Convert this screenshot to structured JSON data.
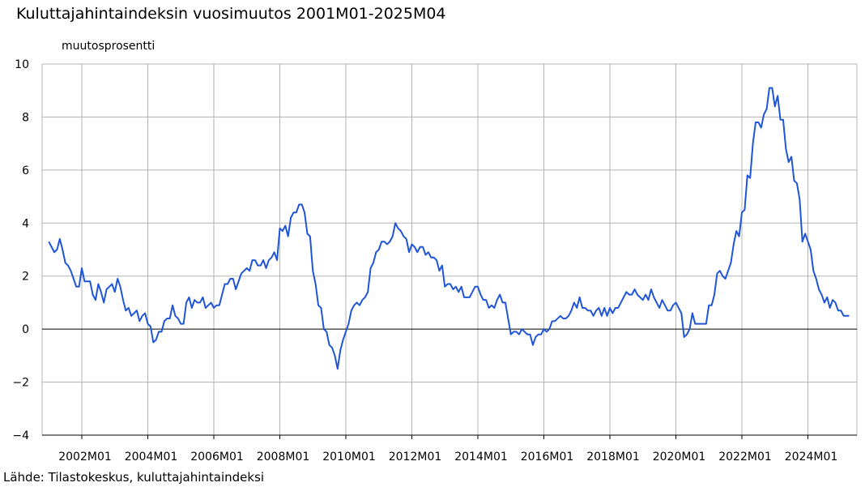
{
  "chart_data": {
    "type": "line",
    "title": "Kuluttajahintaindeksin vuosimuutos 2001M01-2025M04",
    "ylabel": "muutosprosentti",
    "xlabel": "",
    "source": "Lähde: Tilastokeskus, kuluttajahintaindeksi",
    "ylim": [
      -4,
      10
    ],
    "y_ticks": [
      {
        "value": -4,
        "label": "−4"
      },
      {
        "value": -2,
        "label": "−2"
      },
      {
        "value": 0,
        "label": "0"
      },
      {
        "value": 2,
        "label": "2"
      },
      {
        "value": 4,
        "label": "4"
      },
      {
        "value": 6,
        "label": "6"
      },
      {
        "value": 8,
        "label": "8"
      },
      {
        "value": 10,
        "label": "10"
      }
    ],
    "x_range": [
      "2001M01",
      "2025M04"
    ],
    "x_ticks": [
      "2002M01",
      "2004M01",
      "2006M01",
      "2008M01",
      "2010M01",
      "2012M01",
      "2014M01",
      "2016M01",
      "2018M01",
      "2020M01",
      "2022M01",
      "2024M01"
    ],
    "grid": true,
    "zero_line": true,
    "series": [
      {
        "name": "vuosimuutos",
        "color": "#1f55d6",
        "start": "2001M01",
        "frequency": "monthly",
        "values": [
          3.3,
          3.1,
          2.9,
          3.0,
          3.4,
          3.0,
          2.5,
          2.4,
          2.2,
          1.9,
          1.6,
          1.6,
          2.3,
          1.8,
          1.8,
          1.8,
          1.3,
          1.1,
          1.7,
          1.4,
          1.0,
          1.5,
          1.6,
          1.7,
          1.4,
          1.9,
          1.6,
          1.1,
          0.7,
          0.8,
          0.5,
          0.6,
          0.7,
          0.3,
          0.5,
          0.6,
          0.2,
          0.1,
          -0.5,
          -0.4,
          -0.1,
          -0.1,
          0.3,
          0.4,
          0.4,
          0.9,
          0.5,
          0.4,
          0.2,
          0.2,
          1.0,
          1.2,
          0.8,
          1.1,
          1.0,
          1.0,
          1.2,
          0.8,
          0.9,
          1.0,
          0.8,
          0.9,
          0.9,
          1.3,
          1.7,
          1.7,
          1.9,
          1.9,
          1.5,
          1.8,
          2.1,
          2.2,
          2.3,
          2.2,
          2.6,
          2.6,
          2.4,
          2.4,
          2.6,
          2.3,
          2.6,
          2.7,
          2.9,
          2.6,
          3.8,
          3.7,
          3.9,
          3.5,
          4.2,
          4.4,
          4.4,
          4.7,
          4.7,
          4.4,
          3.6,
          3.5,
          2.2,
          1.7,
          0.9,
          0.8,
          0.0,
          -0.1,
          -0.6,
          -0.7,
          -1.0,
          -1.5,
          -0.8,
          -0.4,
          -0.1,
          0.2,
          0.7,
          0.9,
          1.0,
          0.9,
          1.1,
          1.2,
          1.4,
          2.3,
          2.5,
          2.9,
          3.0,
          3.3,
          3.3,
          3.2,
          3.3,
          3.5,
          4.0,
          3.8,
          3.7,
          3.5,
          3.4,
          2.9,
          3.2,
          3.1,
          2.9,
          3.1,
          3.1,
          2.8,
          2.9,
          2.7,
          2.7,
          2.6,
          2.2,
          2.4,
          1.6,
          1.7,
          1.7,
          1.5,
          1.6,
          1.4,
          1.6,
          1.2,
          1.2,
          1.2,
          1.4,
          1.6,
          1.6,
          1.3,
          1.1,
          1.1,
          0.8,
          0.9,
          0.8,
          1.1,
          1.3,
          1.0,
          1.0,
          0.4,
          -0.2,
          -0.1,
          -0.1,
          -0.2,
          0.0,
          -0.1,
          -0.2,
          -0.2,
          -0.6,
          -0.3,
          -0.2,
          -0.2,
          0.0,
          -0.1,
          0.0,
          0.3,
          0.3,
          0.4,
          0.5,
          0.4,
          0.4,
          0.5,
          0.7,
          1.0,
          0.8,
          1.2,
          0.8,
          0.8,
          0.7,
          0.7,
          0.5,
          0.7,
          0.8,
          0.5,
          0.8,
          0.5,
          0.8,
          0.6,
          0.8,
          0.8,
          1.0,
          1.2,
          1.4,
          1.3,
          1.3,
          1.5,
          1.3,
          1.2,
          1.1,
          1.3,
          1.1,
          1.5,
          1.2,
          1.0,
          0.8,
          1.1,
          0.9,
          0.7,
          0.7,
          0.9,
          1.0,
          0.8,
          0.6,
          -0.3,
          -0.2,
          0.0,
          0.6,
          0.2,
          0.2,
          0.2,
          0.2,
          0.2,
          0.9,
          0.9,
          1.3,
          2.1,
          2.2,
          2.0,
          1.9,
          2.2,
          2.5,
          3.2,
          3.7,
          3.5,
          4.4,
          4.5,
          5.8,
          5.7,
          7.0,
          7.8,
          7.8,
          7.6,
          8.1,
          8.3,
          9.1,
          9.1,
          8.4,
          8.8,
          7.9,
          7.9,
          6.8,
          6.3,
          6.5,
          5.6,
          5.5,
          4.9,
          3.3,
          3.6,
          3.3,
          3.0,
          2.2,
          1.9,
          1.5,
          1.3,
          1.0,
          1.2,
          0.8,
          1.1,
          1.0,
          0.7,
          0.7,
          0.5,
          0.5,
          0.5
        ]
      }
    ]
  }
}
